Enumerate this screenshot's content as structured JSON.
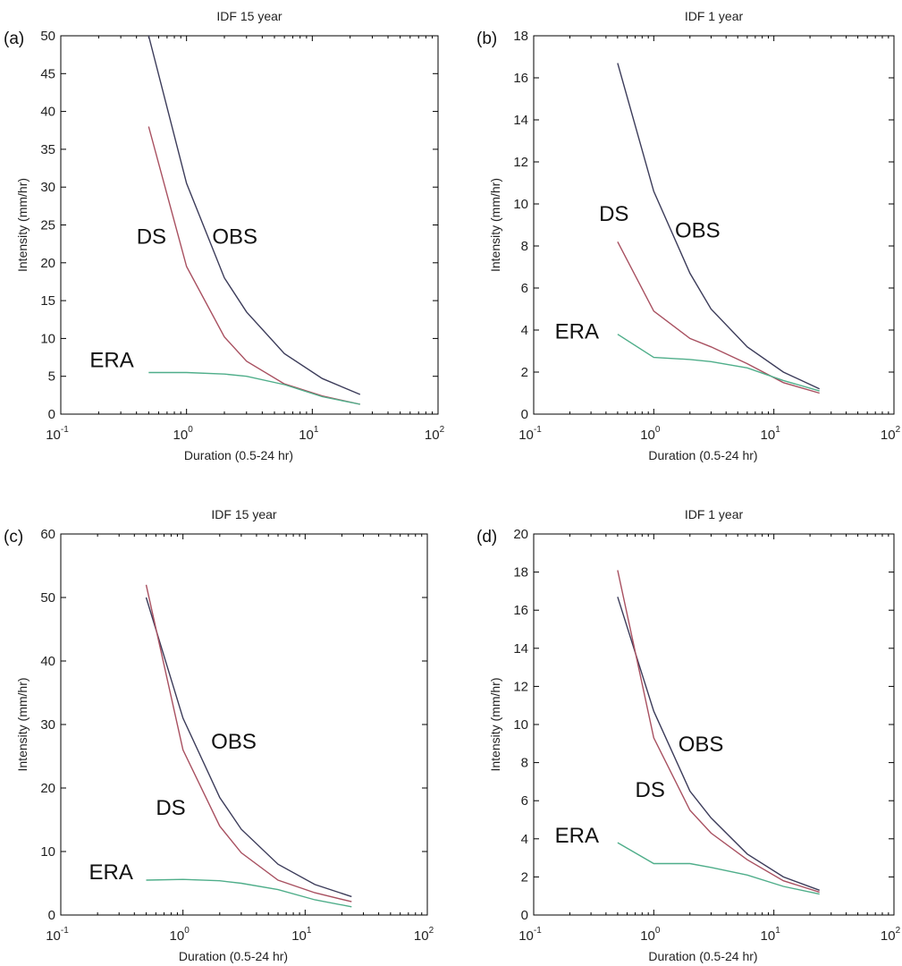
{
  "chart_data": [
    {
      "type": "line",
      "panel": "(a)",
      "title": "IDF 15 year",
      "xlabel": "Duration (0.5-24 hr)",
      "ylabel": "Intensity (mm/hr)",
      "xscale": "log",
      "xlim": [
        0.1,
        100
      ],
      "ylim": [
        0,
        50
      ],
      "xticks": [
        0.1,
        1,
        10,
        100
      ],
      "xtick_labels": [
        {
          "base": "10",
          "exp": "-1"
        },
        {
          "base": "10",
          "exp": "0"
        },
        {
          "base": "10",
          "exp": "1"
        },
        {
          "base": "10",
          "exp": "2"
        }
      ],
      "yticks": [
        0,
        5,
        10,
        15,
        20,
        25,
        30,
        35,
        40,
        45,
        50
      ],
      "grid": false,
      "series": [
        {
          "name": "OBS",
          "color": "#3c3c5a",
          "x": [
            0.5,
            1,
            2,
            3,
            6,
            12,
            24
          ],
          "y": [
            50,
            30.5,
            18,
            13.5,
            8,
            4.7,
            2.6
          ]
        },
        {
          "name": "DS",
          "color": "#a85060",
          "x": [
            0.5,
            1,
            2,
            3,
            6,
            12,
            24
          ],
          "y": [
            38,
            19.5,
            10.2,
            7,
            4,
            2.4,
            1.3
          ]
        },
        {
          "name": "ERA",
          "color": "#4fae8a",
          "x": [
            0.5,
            1,
            2,
            3,
            6,
            12,
            24
          ],
          "y": [
            5.5,
            5.5,
            5.3,
            5,
            3.9,
            2.3,
            1.3
          ]
        }
      ],
      "annotations": [
        {
          "text": "DS",
          "x": 0.4,
          "y": 22.5
        },
        {
          "text": "OBS",
          "x": 1.6,
          "y": 22.5
        },
        {
          "text": "ERA",
          "x": 0.17,
          "y": 6.2
        }
      ]
    },
    {
      "type": "line",
      "panel": "(b)",
      "title": "IDF 1 year",
      "xlabel": "Duration (0.5-24 hr)",
      "ylabel": "Intensity (mm/hr)",
      "xscale": "log",
      "xlim": [
        0.1,
        100
      ],
      "ylim": [
        0,
        18
      ],
      "xticks": [
        0.1,
        1,
        10,
        100
      ],
      "xtick_labels": [
        {
          "base": "10",
          "exp": "-1"
        },
        {
          "base": "10",
          "exp": "0"
        },
        {
          "base": "10",
          "exp": "1"
        },
        {
          "base": "10",
          "exp": "2"
        }
      ],
      "yticks": [
        0,
        2,
        4,
        6,
        8,
        10,
        12,
        14,
        16,
        18
      ],
      "grid": false,
      "series": [
        {
          "name": "OBS",
          "color": "#3c3c5a",
          "x": [
            0.5,
            1,
            2,
            3,
            6,
            12,
            24
          ],
          "y": [
            16.7,
            10.6,
            6.7,
            5,
            3.2,
            2,
            1.2
          ]
        },
        {
          "name": "DS",
          "color": "#a85060",
          "x": [
            0.5,
            1,
            2,
            3,
            6,
            12,
            24
          ],
          "y": [
            8.2,
            4.9,
            3.6,
            3.2,
            2.4,
            1.5,
            1
          ]
        },
        {
          "name": "ERA",
          "color": "#4fae8a",
          "x": [
            0.5,
            1,
            2,
            3,
            6,
            12,
            24
          ],
          "y": [
            3.8,
            2.7,
            2.6,
            2.5,
            2.2,
            1.6,
            1.1
          ]
        }
      ],
      "annotations": [
        {
          "text": "DS",
          "x": 0.35,
          "y": 9.2
        },
        {
          "text": "OBS",
          "x": 1.5,
          "y": 8.4
        },
        {
          "text": "ERA",
          "x": 0.15,
          "y": 3.6
        }
      ]
    },
    {
      "type": "line",
      "panel": "(c)",
      "title": "IDF 15 year",
      "xlabel": "Duration (0.5-24 hr)",
      "ylabel": "Intensity (mm/hr)",
      "xscale": "log",
      "xlim": [
        0.1,
        100
      ],
      "ylim": [
        0,
        60
      ],
      "xticks": [
        0.1,
        1,
        10,
        100
      ],
      "xtick_labels": [
        {
          "base": "10",
          "exp": "-1"
        },
        {
          "base": "10",
          "exp": "0"
        },
        {
          "base": "10",
          "exp": "1"
        },
        {
          "base": "10",
          "exp": "2"
        }
      ],
      "yticks": [
        0,
        10,
        20,
        30,
        40,
        50,
        60
      ],
      "grid": false,
      "series": [
        {
          "name": "OBS",
          "color": "#3c3c5a",
          "x": [
            0.5,
            1,
            2,
            3,
            6,
            12,
            24
          ],
          "y": [
            50,
            31,
            18.5,
            13.5,
            8,
            4.8,
            2.9
          ]
        },
        {
          "name": "DS",
          "color": "#a85060",
          "x": [
            0.5,
            1,
            2,
            3,
            6,
            12,
            24
          ],
          "y": [
            52,
            26,
            14,
            9.8,
            5.5,
            3.5,
            2.1
          ]
        },
        {
          "name": "ERA",
          "color": "#4fae8a",
          "x": [
            0.5,
            1,
            2,
            3,
            6,
            12,
            24
          ],
          "y": [
            5.5,
            5.6,
            5.4,
            5,
            4,
            2.4,
            1.3
          ]
        }
      ],
      "annotations": [
        {
          "text": "OBS",
          "x": 1.7,
          "y": 26.2
        },
        {
          "text": "DS",
          "x": 0.6,
          "y": 15.8
        },
        {
          "text": "ERA",
          "x": 0.17,
          "y": 5.6
        }
      ]
    },
    {
      "type": "line",
      "panel": "(d)",
      "title": "IDF 1 year",
      "xlabel": "Duration (0.5-24 hr)",
      "ylabel": "Intensity (mm/hr)",
      "xscale": "log",
      "xlim": [
        0.1,
        100
      ],
      "ylim": [
        0,
        20
      ],
      "xticks": [
        0.1,
        1,
        10,
        100
      ],
      "xtick_labels": [
        {
          "base": "10",
          "exp": "-1"
        },
        {
          "base": "10",
          "exp": "0"
        },
        {
          "base": "10",
          "exp": "1"
        },
        {
          "base": "10",
          "exp": "2"
        }
      ],
      "yticks": [
        0,
        2,
        4,
        6,
        8,
        10,
        12,
        14,
        16,
        18,
        20
      ],
      "grid": false,
      "series": [
        {
          "name": "OBS",
          "color": "#3c3c5a",
          "x": [
            0.5,
            1,
            2,
            3,
            6,
            12,
            24
          ],
          "y": [
            16.7,
            10.7,
            6.5,
            5.1,
            3.2,
            2,
            1.3
          ]
        },
        {
          "name": "DS",
          "color": "#a85060",
          "x": [
            0.5,
            1,
            2,
            3,
            6,
            12,
            24
          ],
          "y": [
            18.1,
            9.3,
            5.5,
            4.3,
            2.9,
            1.8,
            1.2
          ]
        },
        {
          "name": "ERA",
          "color": "#4fae8a",
          "x": [
            0.5,
            1,
            2,
            3,
            6,
            12,
            24
          ],
          "y": [
            3.8,
            2.7,
            2.7,
            2.5,
            2.1,
            1.5,
            1.1
          ]
        }
      ],
      "annotations": [
        {
          "text": "OBS",
          "x": 1.6,
          "y": 8.6
        },
        {
          "text": "DS",
          "x": 0.7,
          "y": 6.2
        },
        {
          "text": "ERA",
          "x": 0.15,
          "y": 3.8
        }
      ]
    }
  ]
}
